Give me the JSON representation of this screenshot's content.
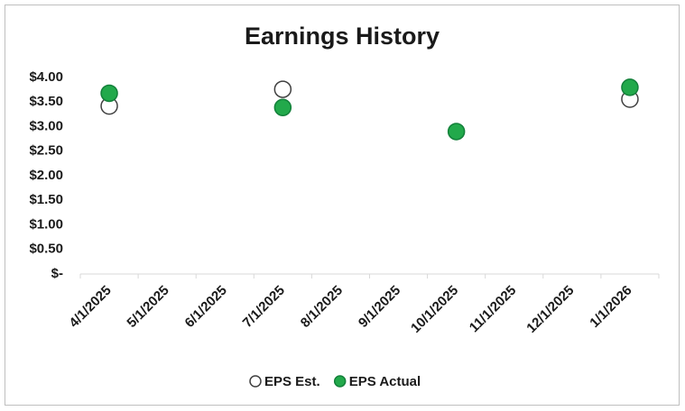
{
  "chart_data": {
    "type": "scatter",
    "title": "Earnings History",
    "categories": [
      "4/1/2025",
      "5/1/2025",
      "6/1/2025",
      "7/1/2025",
      "8/1/2025",
      "9/1/2025",
      "10/1/2025",
      "11/1/2025",
      "12/1/2025",
      "1/1/2026"
    ],
    "series": [
      {
        "name": "EPS Est.",
        "color": "#ffffff",
        "edgecolor": "#404040",
        "values": [
          3.42,
          null,
          null,
          3.76,
          null,
          null,
          null,
          null,
          null,
          3.56
        ]
      },
      {
        "name": "EPS Actual",
        "color": "#22a94b",
        "edgecolor": "#13803a",
        "values": [
          3.68,
          null,
          null,
          3.39,
          null,
          null,
          2.9,
          null,
          null,
          3.8
        ]
      }
    ],
    "ylim": [
      0,
      4
    ],
    "yticks": [
      {
        "value": 0,
        "label": "$-"
      },
      {
        "value": 0.5,
        "label": "$0.50"
      },
      {
        "value": 1,
        "label": "$1.00"
      },
      {
        "value": 1.5,
        "label": "$1.50"
      },
      {
        "value": 2,
        "label": "$2.00"
      },
      {
        "value": 2.5,
        "label": "$2.50"
      },
      {
        "value": 3,
        "label": "$3.00"
      },
      {
        "value": 3.5,
        "label": "$3.50"
      },
      {
        "value": 4,
        "label": "$4.00"
      }
    ],
    "grid": false,
    "legend": "bottom"
  }
}
